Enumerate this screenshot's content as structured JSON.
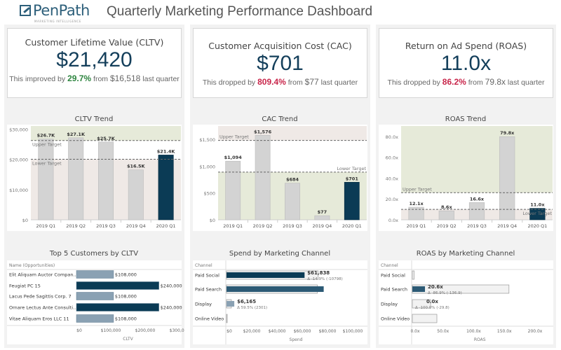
{
  "header": {
    "logo_text": "PenPath",
    "logo_sub": "MARKETING INTELLIGENCE",
    "title": "Quarterly Marketing Performance Dashboard"
  },
  "colors": {
    "primary": "#0b3b55",
    "bar_gray": "#d3d3d3",
    "good_zone": "#e6ead9",
    "bad_zone": "#efe9e6",
    "good": "#2e8540",
    "bad": "#c8254a",
    "light_bar": "#8aa1b3"
  },
  "kpis": [
    {
      "title": "Customer Lifetime Value (CLTV)",
      "value": "$21,420",
      "prefix": "This improved by",
      "change": "29.7%",
      "change_color": "#2e8540",
      "mid": "from",
      "previous": "$16,518",
      "suffix": "last quarter"
    },
    {
      "title": "Customer Acquisition Cost (CAC)",
      "value": "$701",
      "prefix": "This dropped by",
      "change": "809.4%",
      "change_color": "#c8254a",
      "mid": "from",
      "previous": "$77",
      "suffix": "last quarter"
    },
    {
      "title": "Return on Ad Spend (ROAS)",
      "value": "11.0x",
      "prefix": "This dropped by",
      "change": "86.2%",
      "change_color": "#c8254a",
      "mid": "from",
      "previous": "79.8x",
      "suffix": "last quarter"
    }
  ],
  "chart_data": [
    {
      "type": "bar",
      "title": "CLTV Trend",
      "categories": [
        "2019 Q1",
        "2019 Q2",
        "2019 Q3",
        "2019 Q4",
        "2020 Q1"
      ],
      "values": [
        26700,
        27100,
        25700,
        16500,
        21420
      ],
      "labels": [
        "$26.7K",
        "$27.1K",
        "$25.7K",
        "$16.5K",
        "$21.4K"
      ],
      "ylim": [
        0,
        31000
      ],
      "yticks": [
        0,
        10000,
        20000,
        30000
      ],
      "ytick_labels": [
        "$0",
        "$10,000",
        "$20,000",
        "$30,000"
      ],
      "upper_target": 26200,
      "lower_target": 20000,
      "upper_label": "Upper Target",
      "lower_label": "Lower Target",
      "higher_is_better": true
    },
    {
      "type": "bar",
      "title": "CAC Trend",
      "categories": [
        "2019 Q1",
        "2019 Q2",
        "2019 Q3",
        "2019 Q4",
        "2020 Q1"
      ],
      "values": [
        1094,
        1576,
        684,
        77,
        701
      ],
      "labels": [
        "$1,094",
        "$1,576",
        "$684",
        "$77",
        "$701"
      ],
      "ylim": [
        0,
        1750
      ],
      "yticks": [
        0,
        500,
        1000,
        1500
      ],
      "ytick_labels": [
        "$0",
        "$500",
        "$1,000",
        "$1,500"
      ],
      "upper_target": 1480,
      "lower_target": 890,
      "upper_label": "Upper Target",
      "lower_label": "Lower Target",
      "higher_is_better": false
    },
    {
      "type": "bar",
      "title": "ROAS Trend",
      "categories": [
        "2019 Q1",
        "2019 Q2",
        "2019 Q3",
        "2019 Q4",
        "2020 Q1"
      ],
      "values": [
        12.1,
        8.6,
        16.6,
        79.8,
        11.0
      ],
      "labels": [
        "12.1x",
        "8.6x",
        "16.6x",
        "79.8x",
        "11.0x"
      ],
      "ylim": [
        0,
        90
      ],
      "yticks": [
        0,
        20,
        40,
        60,
        80
      ],
      "ytick_labels": [
        "0.0x",
        "20.0x",
        "40.0x",
        "60.0x",
        "80.0x"
      ],
      "upper_target": 26,
      "lower_target": 10,
      "upper_label": "Upper Target",
      "lower_label": "Lower Target",
      "higher_is_better": true
    },
    {
      "type": "bar",
      "orientation": "horizontal",
      "title": "Top 5 Customers by CLTV",
      "row_header": "Name (Opportunities)",
      "categories": [
        "Elit Aliquam Auctor Compan..",
        "Feugiat PC 15",
        "Lacus Pede Sagittis Corp. 7",
        "Ornare Lectus Ante Consulti..",
        "Vitae Aliquam Eros LLC 11"
      ],
      "values": [
        108000,
        240000,
        108000,
        240000,
        108000
      ],
      "labels": [
        "$108,000",
        "$240,000",
        "$108,000",
        "$240,000",
        "$108,000"
      ],
      "xlim": [
        0,
        300000
      ],
      "xticks": [
        0,
        100000,
        200000,
        300000
      ],
      "xtick_labels": [
        "$0",
        "$100,000",
        "$200,000",
        "$300,000"
      ],
      "xlabel": "CLTV"
    },
    {
      "type": "bar",
      "orientation": "horizontal",
      "title": "Spend by Marketing Channel",
      "row_header": "Channel",
      "categories": [
        "Paid Social",
        "Paid Search",
        "Display",
        "Online Video"
      ],
      "values": [
        61838,
        77000,
        6165,
        0
      ],
      "previous": [
        72636,
        72000,
        3864,
        500
      ],
      "labels": [
        "$61,838",
        "",
        "$6,165",
        ""
      ],
      "deltas": [
        "Δ -14.9% (-10798)",
        "",
        "Δ 59.5% (2301)",
        ""
      ],
      "xlim": [
        0,
        110000
      ],
      "xticks": [
        0,
        20000,
        40000,
        60000,
        80000,
        100000
      ],
      "xtick_labels": [
        "$0",
        "$20,000",
        "$40,000",
        "$60,000",
        "$80,000",
        "$100,000"
      ],
      "xlabel": "Spend"
    },
    {
      "type": "bar",
      "orientation": "horizontal",
      "title": "ROAS by Marketing Channel",
      "row_header": "Channel",
      "categories": [
        "Paid Social",
        "Paid Search",
        "Display",
        "Online Video"
      ],
      "values": [
        0,
        20.6,
        0,
        0
      ],
      "previous": [
        3,
        157.5,
        29.8,
        40
      ],
      "labels": [
        "",
        "20.6x",
        "0.0x",
        ""
      ],
      "deltas": [
        "",
        "Δ -86.9% (-136.9)",
        "Δ -100.0% (-29.8)",
        ""
      ],
      "xlim": [
        0,
        220
      ],
      "xticks": [
        0,
        50,
        100,
        150,
        200
      ],
      "xtick_labels": [
        "0.0x",
        "50.0x",
        "100.0x",
        "150.0x",
        "200.0x"
      ],
      "xlabel": "ROAS"
    }
  ]
}
